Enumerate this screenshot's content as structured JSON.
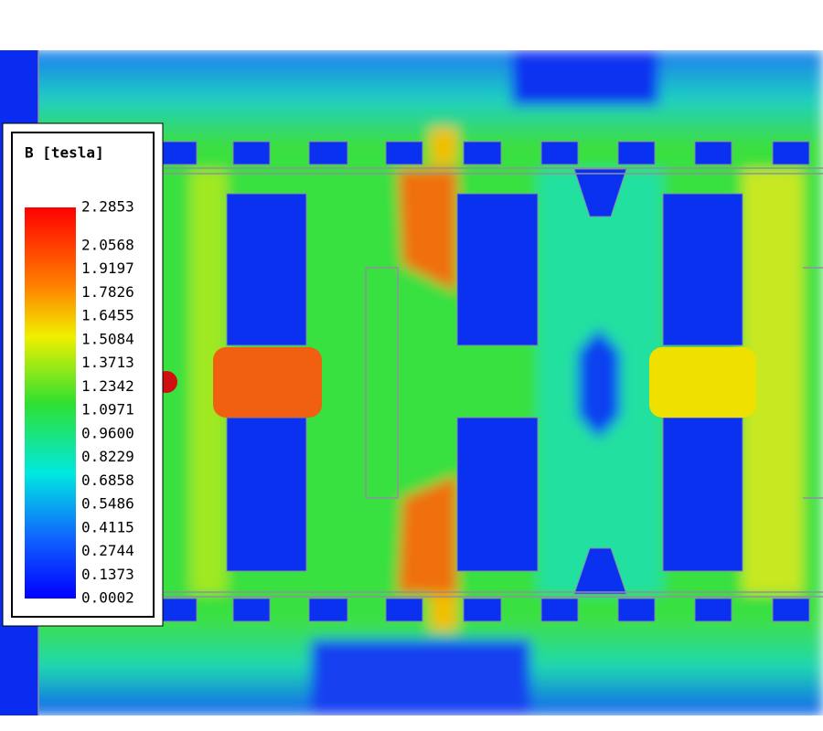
{
  "legend": {
    "title": "B [tesla]",
    "labels": [
      "2.2853",
      "2.0568",
      "1.9197",
      "1.7826",
      "1.6455",
      "1.5084",
      "1.3713",
      "1.2342",
      "1.0971",
      "0.9600",
      "0.8229",
      "0.6858",
      "0.5486",
      "0.4115",
      "0.2744",
      "0.1373",
      "0.0002"
    ]
  }
}
